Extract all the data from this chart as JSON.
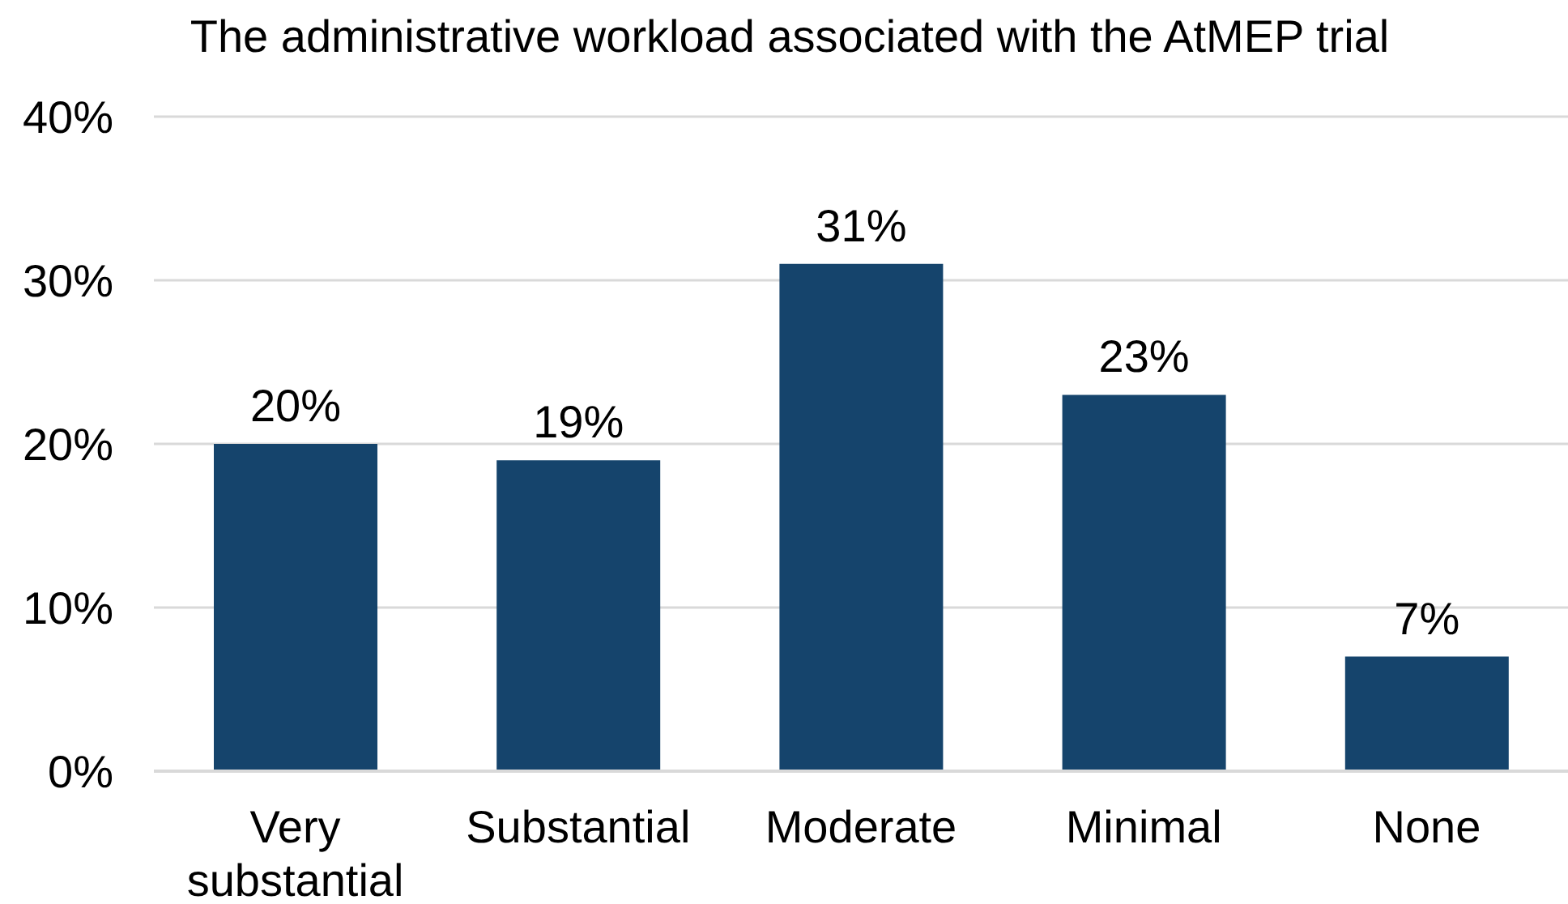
{
  "chart_data": {
    "type": "bar",
    "title": "The administrative workload associated with the AtMEP trial",
    "categories": [
      "Very substantial",
      "Substantial",
      "Moderate",
      "Minimal",
      "None"
    ],
    "values": [
      20,
      19,
      31,
      23,
      7
    ],
    "value_labels": [
      "20%",
      "19%",
      "31%",
      "23%",
      "7%"
    ],
    "color": "#15446c",
    "ylim": [
      0,
      40
    ],
    "yticks": [
      {
        "value": 0,
        "label": "0%"
      },
      {
        "value": 10,
        "label": "10%"
      },
      {
        "value": 20,
        "label": "20%"
      },
      {
        "value": 30,
        "label": "30%"
      },
      {
        "value": 40,
        "label": "40%"
      }
    ],
    "grid": "y"
  }
}
